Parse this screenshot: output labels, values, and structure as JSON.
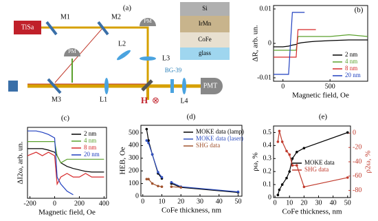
{
  "diagram": {
    "label": "(a)",
    "texts": [
      "TiSa",
      "M1",
      "M2",
      "PM",
      "L2",
      "L3",
      "PM",
      "M3",
      "L1",
      "H",
      "⊗",
      "BG-39",
      "L4",
      "PMT",
      "Si",
      "IrMn",
      "CoFe",
      "glass"
    ]
  },
  "chart_data": [
    {
      "type": "line",
      "title": "(b)",
      "xlabel": "Magnetic field, Oe",
      "ylabel": "ΔR, arb. un.",
      "legend": "lower right",
      "x": [
        -100,
        0,
        60,
        100,
        140,
        160,
        200,
        230,
        300,
        350,
        500,
        700,
        900
      ],
      "xlim": [
        -100,
        900
      ],
      "ylim": [
        -0.011,
        0.011
      ],
      "xticks": [
        0,
        500
      ],
      "yticks": [
        0.01,
        0,
        -0.01
      ],
      "series": [
        {
          "name": "2 nm",
          "color": "#000000",
          "values": [
            -0.001,
            -0.001,
            -0.0008,
            -0.0005,
            -0.0003,
            0,
            0.0002,
            0.0003,
            0.0005,
            0.0006,
            0.0008,
            0.001,
            0.001
          ]
        },
        {
          "name": "4 nm",
          "color": "#5aa02c",
          "values": [
            -0.002,
            -0.002,
            -0.002,
            -0.002,
            -0.002,
            0.002,
            0.002,
            0.002,
            0.002,
            0.002,
            0.002,
            0.0025,
            0.002
          ]
        },
        {
          "name": "8 nm",
          "color": "#d62728",
          "values": [
            -0.004,
            -0.004,
            -0.004,
            -0.004,
            -0.004,
            0.004,
            0.004,
            0.004,
            0.004,
            0.004,
            null,
            null,
            null
          ]
        },
        {
          "name": "20 nm",
          "color": "#1f3fbf",
          "values": [
            -0.009,
            -0.009,
            -0.009,
            0.009,
            0.009,
            0.009,
            0.009,
            0.009,
            null,
            null,
            null,
            null,
            null
          ]
        }
      ]
    },
    {
      "type": "line",
      "title": "(c)",
      "xlabel": "Magnetic field, Oe",
      "ylabel": "ΔI2ω, arb. un.",
      "legend": "upper right",
      "x": [
        -220,
        -150,
        -100,
        -50,
        0,
        20,
        50,
        100,
        150,
        200,
        250,
        300,
        400
      ],
      "xlim": [
        -220,
        420
      ],
      "ylim": [
        0,
        10
      ],
      "xticks": [
        -200,
        0,
        200,
        400
      ],
      "series": [
        {
          "name": "2 nm",
          "color": "#000000",
          "values": [
            7,
            7,
            7,
            6.8,
            6.5,
            6,
            5,
            4.5,
            4.2,
            4,
            3.8,
            3.7,
            3.7
          ]
        },
        {
          "name": "4 nm",
          "color": "#5aa02c",
          "values": [
            8,
            8,
            8,
            8,
            8,
            6,
            5,
            5.5,
            5.5,
            5.5,
            5.5,
            5.5,
            5.5
          ]
        },
        {
          "name": "8 nm",
          "color": "#d62728",
          "values": [
            6,
            6.5,
            6,
            6.5,
            6,
            2,
            3,
            3.5,
            3,
            3,
            3.5,
            3,
            3
          ]
        },
        {
          "name": "20 nm",
          "color": "#1f3fbf",
          "values": [
            9.5,
            9.5,
            9.3,
            9,
            8.5,
            3,
            2,
            1,
            0.5,
            null,
            null,
            null,
            null
          ]
        }
      ]
    },
    {
      "type": "line",
      "title": "(d)",
      "xlabel": "CoFe thickness, nm",
      "ylabel": "HEB, Oe",
      "legend": "upper right",
      "markers": true,
      "x": [
        2,
        3,
        5,
        8,
        10,
        12,
        15,
        20,
        50
      ],
      "xlim": [
        -1,
        52
      ],
      "ylim": [
        0,
        560
      ],
      "xticks": [
        0,
        10,
        20,
        30,
        40,
        50
      ],
      "yticks": [
        0,
        100,
        200,
        300,
        400,
        500
      ],
      "series": [
        {
          "name": "MOKE data (lamp)",
          "color": "#000000",
          "values": [
            530,
            440,
            330,
            180,
            140,
            null,
            100,
            70,
            30
          ]
        },
        {
          "name": "MOKE data (laser)",
          "color": "#3050c0",
          "values": [
            440,
            420,
            330,
            190,
            150,
            null,
            110,
            75,
            35
          ]
        },
        {
          "name": "SHG data",
          "color": "#a0522d",
          "values": [
            135,
            135,
            100,
            80,
            75,
            null,
            75,
            70,
            null
          ]
        }
      ]
    },
    {
      "type": "line",
      "title": "(e)",
      "xlabel": "CoFe thickness, nm",
      "ylabel": "ρω, %",
      "y2label": "ρ2ω, %",
      "legend": "center right",
      "markers": true,
      "x": [
        2,
        3,
        5,
        8,
        10,
        12,
        15,
        20,
        50
      ],
      "xlim": [
        -1,
        52
      ],
      "ylim": [
        0,
        0.55
      ],
      "y2lim": [
        -90,
        10
      ],
      "xticks": [
        0,
        10,
        20,
        30,
        40,
        50
      ],
      "yticks": [
        0,
        0.1,
        0.2,
        0.3,
        0.4,
        0.5
      ],
      "y2ticks": [
        0,
        -20,
        -40,
        -60,
        -80
      ],
      "series": [
        {
          "name": "MOKE data",
          "color": "#000000",
          "values": [
            0.02,
            0.06,
            0.1,
            0.15,
            0.2,
            0.3,
            0.35,
            0.38,
            0.5
          ]
        },
        {
          "name": "SHG data",
          "color": "#c0392b",
          "axis": "y2",
          "values": [
            -12,
            3,
            -12,
            -25,
            -30,
            -45,
            -45,
            -75,
            -62
          ]
        }
      ]
    }
  ]
}
